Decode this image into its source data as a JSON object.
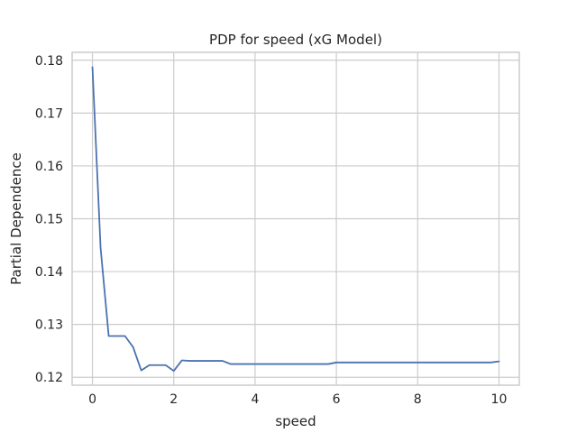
{
  "chart_data": {
    "type": "line",
    "title": "PDP for speed (xG Model)",
    "xlabel": "speed",
    "ylabel": "Partial Dependence",
    "xlim": [
      -0.5,
      10.5
    ],
    "ylim": [
      0.1185,
      0.1815
    ],
    "xticks": [
      0,
      2,
      4,
      6,
      8,
      10
    ],
    "xtick_labels": [
      "0",
      "2",
      "4",
      "6",
      "8",
      "10"
    ],
    "yticks": [
      0.12,
      0.13,
      0.14,
      0.15,
      0.16,
      0.17,
      0.18
    ],
    "ytick_labels": [
      "0.12",
      "0.13",
      "0.14",
      "0.15",
      "0.16",
      "0.17",
      "0.18"
    ],
    "grid": true,
    "legend": "none",
    "colors": {
      "line": "#4c72b0",
      "grid": "#cccccc",
      "text": "#262626"
    },
    "series": [
      {
        "x": [
          0,
          0.2,
          0.4,
          0.6,
          0.8,
          1.0,
          1.2,
          1.4,
          1.6,
          1.8,
          2.0,
          2.2,
          2.4,
          2.6,
          2.8,
          3.0,
          3.2,
          3.4,
          3.6,
          3.8,
          4.0,
          4.2,
          4.4,
          4.6,
          4.8,
          5.0,
          5.2,
          5.4,
          5.6,
          5.8,
          6.0,
          6.2,
          6.4,
          6.6,
          6.8,
          7.0,
          7.2,
          7.4,
          7.6,
          7.8,
          8.0,
          8.2,
          8.4,
          8.6,
          8.8,
          9.0,
          9.2,
          9.4,
          9.6,
          9.8,
          10.0
        ],
        "values": [
          0.1787,
          0.1445,
          0.1278,
          0.1278,
          0.1278,
          0.1257,
          0.1213,
          0.1223,
          0.1223,
          0.1223,
          0.1212,
          0.1232,
          0.1231,
          0.1231,
          0.1231,
          0.1231,
          0.1231,
          0.1225,
          0.1225,
          0.1225,
          0.1225,
          0.1225,
          0.1225,
          0.1225,
          0.1225,
          0.1225,
          0.1225,
          0.1225,
          0.1225,
          0.1225,
          0.1228,
          0.1228,
          0.1228,
          0.1228,
          0.1228,
          0.1228,
          0.1228,
          0.1228,
          0.1228,
          0.1228,
          0.1228,
          0.1228,
          0.1228,
          0.1228,
          0.1228,
          0.1228,
          0.1228,
          0.1228,
          0.1228,
          0.1228,
          0.123
        ]
      }
    ]
  }
}
